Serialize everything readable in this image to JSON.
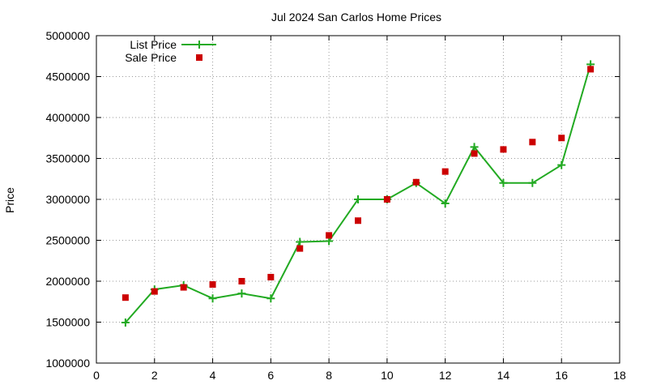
{
  "chart_data": {
    "type": "line",
    "title": "Jul 2024 San Carlos Home Prices",
    "xlabel": "",
    "ylabel": "Price",
    "xlim": [
      0,
      18
    ],
    "ylim": [
      1000000,
      5000000
    ],
    "x_ticks": [
      0,
      2,
      4,
      6,
      8,
      10,
      12,
      14,
      16,
      18
    ],
    "y_ticks": [
      1000000,
      1500000,
      2000000,
      2500000,
      3000000,
      3500000,
      4000000,
      4500000,
      5000000
    ],
    "grid": true,
    "legend_position": "top-left",
    "series": [
      {
        "name": "List Price",
        "style": "linespoints",
        "marker": "plus",
        "color": "#22aa22",
        "x": [
          1,
          2,
          3,
          4,
          5,
          6,
          7,
          8,
          9,
          10,
          11,
          12,
          13,
          14,
          15,
          16,
          17
        ],
        "y": [
          1495000,
          1900000,
          1950000,
          1790000,
          1850000,
          1790000,
          2480000,
          2490000,
          3000000,
          3000000,
          3200000,
          2950000,
          3640000,
          3200000,
          3200000,
          3420000,
          4650000
        ]
      },
      {
        "name": "Sale Price",
        "style": "points",
        "marker": "square",
        "color": "#cc0000",
        "x": [
          1,
          2,
          3,
          4,
          5,
          6,
          7,
          8,
          9,
          10,
          11,
          12,
          13,
          14,
          15,
          16,
          17
        ],
        "y": [
          1800000,
          1875000,
          1925000,
          1960000,
          2000000,
          2050000,
          2400000,
          2560000,
          2740000,
          3000000,
          3210000,
          3340000,
          3560000,
          3610000,
          3700000,
          3750000,
          4590000
        ]
      }
    ]
  }
}
